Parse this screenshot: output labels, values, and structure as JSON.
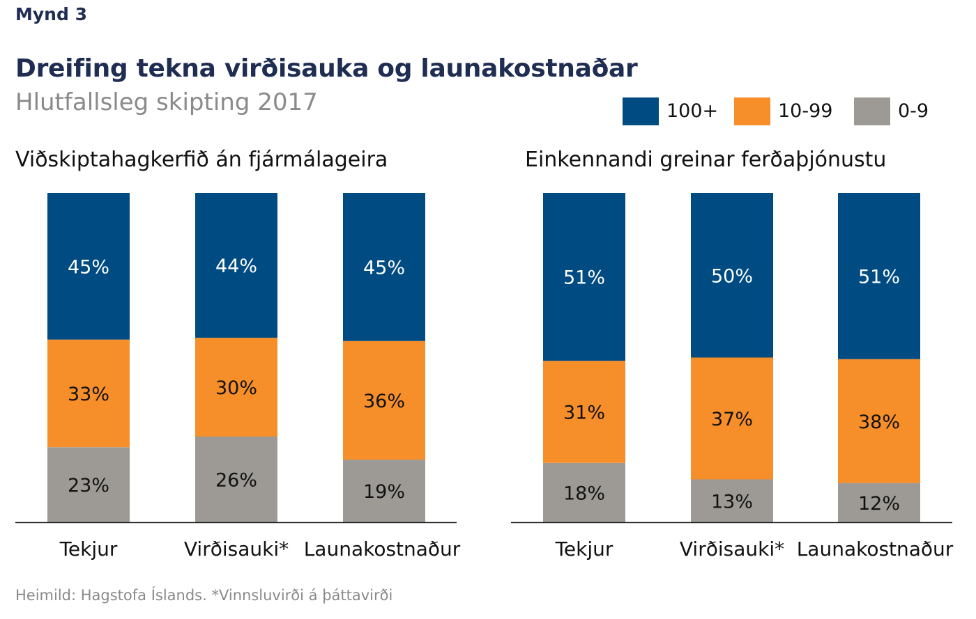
{
  "figure_label": "Mynd 3",
  "title": "Dreifing tekna virðisauka og launakostnaðar",
  "subtitle": "Hlutfallsleg skipting 2017",
  "source": "Heimild: Hagstofa Íslands. *Vinnsluvirði á þáttavirði",
  "colors": {
    "100+": "#004b81",
    "10-99": "#f68e2a",
    "0-9": "#9d9a95"
  },
  "legend": [
    {
      "label": "100+",
      "color": "#004b81"
    },
    {
      "label": "10-99",
      "color": "#f68e2a"
    },
    {
      "label": "0-9",
      "color": "#9d9a95"
    }
  ],
  "chart_data": [
    {
      "type": "bar",
      "stacked": true,
      "title": "Viðskiptahagkerfið án fjármálageira",
      "categories": [
        "Tekjur",
        "Virðisauki*",
        "Launakostnaður"
      ],
      "series": [
        {
          "name": "0-9",
          "values": [
            23,
            26,
            19
          ]
        },
        {
          "name": "10-99",
          "values": [
            33,
            30,
            36
          ]
        },
        {
          "name": "100+",
          "values": [
            45,
            44,
            45
          ]
        }
      ],
      "value_labels": [
        [
          "23%",
          "26%",
          "19%"
        ],
        [
          "33%",
          "30%",
          "36%"
        ],
        [
          "45%",
          "44%",
          "45%"
        ]
      ],
      "ylim": [
        0,
        100
      ]
    },
    {
      "type": "bar",
      "stacked": true,
      "title": "Einkennandi greinar ferðaþjónustu",
      "categories": [
        "Tekjur",
        "Virðisauki*",
        "Launakostnaður"
      ],
      "series": [
        {
          "name": "0-9",
          "values": [
            18,
            13,
            12
          ]
        },
        {
          "name": "10-99",
          "values": [
            31,
            37,
            38
          ]
        },
        {
          "name": "100+",
          "values": [
            51,
            50,
            51
          ]
        }
      ],
      "value_labels": [
        [
          "18%",
          "13%",
          "12%"
        ],
        [
          "31%",
          "37%",
          "38%"
        ],
        [
          "51%",
          "50%",
          "51%"
        ]
      ],
      "ylim": [
        0,
        100
      ]
    }
  ]
}
